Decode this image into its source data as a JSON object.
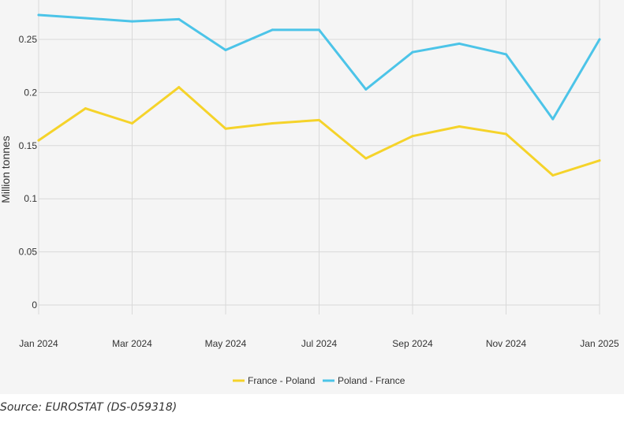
{
  "chart_data": {
    "type": "line",
    "ylabel": "Million tonnes",
    "ylim": [
      0,
      0.275
    ],
    "yticks": [
      "0",
      "0.05",
      "0.1",
      "0.15",
      "0.2",
      "0.25"
    ],
    "x": [
      "2024-01",
      "2024-02",
      "2024-03",
      "2024-04",
      "2024-05",
      "2024-06",
      "2024-07",
      "2024-08",
      "2024-09",
      "2024-10",
      "2024-11",
      "2024-12",
      "2025-01"
    ],
    "xtick_labels": [
      "Jan 2024",
      "Mar 2024",
      "May 2024",
      "Jul 2024",
      "Sep 2024",
      "Nov 2024",
      "Jan 2025"
    ],
    "grid": true,
    "legend_position": "bottom",
    "series": [
      {
        "name": "France - Poland",
        "color": "#f5d32a",
        "values": [
          0.155,
          0.185,
          0.171,
          0.205,
          0.166,
          0.171,
          0.174,
          0.138,
          0.159,
          0.168,
          0.161,
          0.122,
          0.136
        ]
      },
      {
        "name": "Poland - France",
        "color": "#4cc4e8",
        "values": [
          0.273,
          0.27,
          0.267,
          0.269,
          0.24,
          0.259,
          0.259,
          0.203,
          0.238,
          0.246,
          0.236,
          0.175,
          0.25
        ]
      }
    ]
  },
  "source": "Source: EUROSTAT (DS-059318)"
}
